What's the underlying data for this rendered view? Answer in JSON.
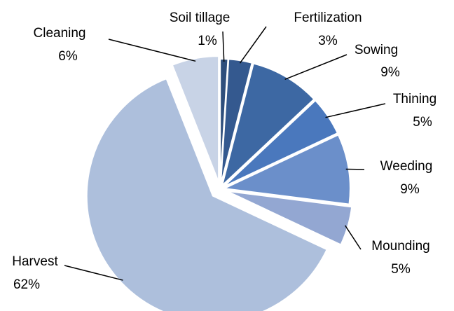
{
  "chart_data": {
    "type": "pie",
    "categories": [
      "Soil tillage",
      "Fertilization",
      "Sowing",
      "Thining",
      "Weeding",
      "Mounding",
      "Harvest",
      "Cleaning"
    ],
    "values": [
      1,
      3,
      9,
      5,
      9,
      5,
      62,
      6
    ],
    "value_labels": [
      "1%",
      "3%",
      "9%",
      "5%",
      "9%",
      "5%",
      "62%",
      "6%"
    ],
    "colors": [
      "#2e4e7c",
      "#34598f",
      "#3d68a3",
      "#4a78bd",
      "#6b8fca",
      "#93a7d2",
      "#adbfdc",
      "#c8d3e6"
    ]
  }
}
